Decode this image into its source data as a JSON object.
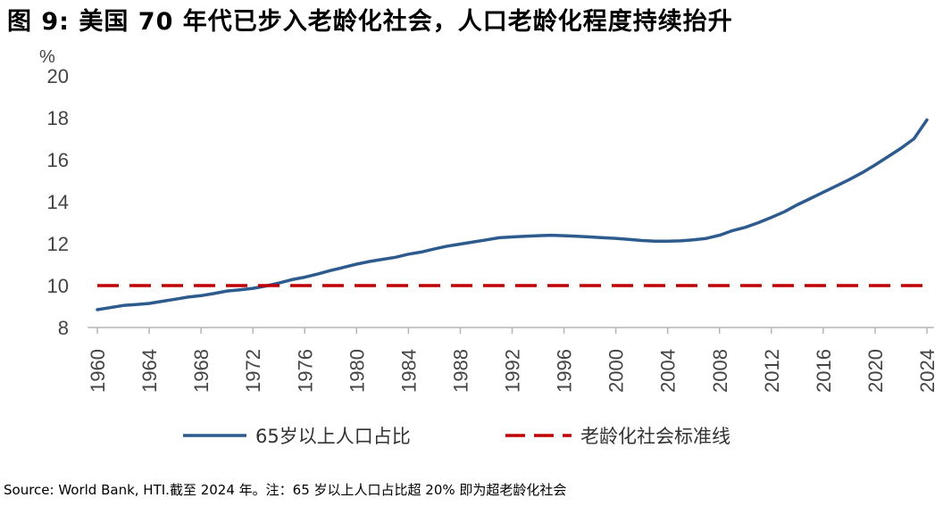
{
  "title": "图 9:  美国 70 年代已步入老龄化社会，人口老龄化程度持续抬升",
  "source": "Source: World Bank, HTI.截至 2024 年。注：65 岁以上人口占比超 20% 即为超老龄化社会",
  "chart_data": {
    "type": "line",
    "unit_label": "%",
    "ylim": [
      8,
      20
    ],
    "yticks": [
      8,
      10,
      12,
      14,
      16,
      18,
      20
    ],
    "xlim": [
      1960,
      2024
    ],
    "xticks": [
      1960,
      1964,
      1968,
      1972,
      1976,
      1980,
      1984,
      1988,
      1992,
      1996,
      2000,
      2004,
      2008,
      2012,
      2016,
      2020,
      2024
    ],
    "grid": false,
    "legend_position": "bottom",
    "series": [
      {
        "name": "65岁以上人口占比",
        "color": "#2E5B8E",
        "style": "solid",
        "x": [
          1960,
          1961,
          1962,
          1963,
          1964,
          1965,
          1966,
          1967,
          1968,
          1969,
          1970,
          1971,
          1972,
          1973,
          1974,
          1975,
          1976,
          1977,
          1978,
          1979,
          1980,
          1981,
          1982,
          1983,
          1984,
          1985,
          1986,
          1987,
          1988,
          1989,
          1990,
          1991,
          1992,
          1993,
          1994,
          1995,
          1996,
          1997,
          1998,
          1999,
          2000,
          2001,
          2002,
          2003,
          2004,
          2005,
          2006,
          2007,
          2008,
          2009,
          2010,
          2011,
          2012,
          2013,
          2014,
          2015,
          2016,
          2017,
          2018,
          2019,
          2020,
          2021,
          2022,
          2023,
          2024
        ],
        "values": [
          8.85,
          8.95,
          9.05,
          9.1,
          9.15,
          9.25,
          9.35,
          9.45,
          9.52,
          9.62,
          9.74,
          9.8,
          9.87,
          9.98,
          10.12,
          10.28,
          10.4,
          10.55,
          10.72,
          10.87,
          11.02,
          11.15,
          11.25,
          11.35,
          11.5,
          11.6,
          11.75,
          11.88,
          11.98,
          12.08,
          12.18,
          12.28,
          12.32,
          12.35,
          12.38,
          12.4,
          12.38,
          12.35,
          12.32,
          12.28,
          12.25,
          12.2,
          12.15,
          12.12,
          12.12,
          12.13,
          12.18,
          12.25,
          12.4,
          12.62,
          12.78,
          13.0,
          13.25,
          13.52,
          13.85,
          14.15,
          14.45,
          14.75,
          15.05,
          15.38,
          15.75,
          16.15,
          16.55,
          17.0,
          17.9
        ]
      },
      {
        "name": "老龄化社会标准线",
        "color": "#C00000",
        "style": "dashed",
        "x": [
          1960,
          2024
        ],
        "values": [
          10,
          10
        ]
      }
    ]
  }
}
